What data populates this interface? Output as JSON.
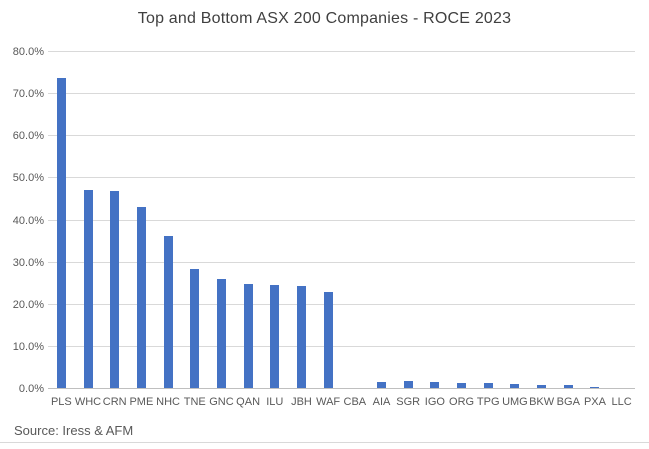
{
  "title": "Top and Bottom ASX 200 Companies - ROCE 2023",
  "source": "Source: Iress & AFM",
  "colors": {
    "bar": "#4472C4",
    "gridline": "#D9D9D9",
    "axis_line": "#BFBFBF",
    "title_text": "#404040",
    "tick_text": "#595959",
    "source_text": "#595959",
    "divider": "#D9D9D9"
  },
  "chart_data": {
    "type": "bar",
    "title": "Top and Bottom ASX 200 Companies - ROCE 2023",
    "categories": [
      "PLS",
      "WHC",
      "CRN",
      "PME",
      "NHC",
      "TNE",
      "GNC",
      "QAN",
      "ILU",
      "JBH",
      "WAF",
      "CBA",
      "AIA",
      "SGR",
      "IGO",
      "ORG",
      "TPG",
      "UMG",
      "BKW",
      "BGA",
      "PXA",
      "LLC"
    ],
    "values": [
      73.5,
      47.0,
      46.8,
      43.0,
      36.2,
      28.2,
      25.8,
      24.7,
      24.5,
      24.2,
      22.8,
      0.0,
      1.5,
      1.6,
      1.4,
      1.1,
      1.2,
      0.9,
      0.8,
      0.6,
      0.3,
      0.0
    ],
    "value_unit": "%",
    "xlabel": "",
    "ylabel": "",
    "ylim": [
      0,
      80
    ],
    "ytick_step": 10,
    "ytick_labels": [
      "0.0%",
      "10.0%",
      "20.0%",
      "30.0%",
      "40.0%",
      "50.0%",
      "60.0%",
      "70.0%",
      "80.0%"
    ],
    "grid": true,
    "legend": false,
    "caption": "Source: Iress & AFM"
  }
}
